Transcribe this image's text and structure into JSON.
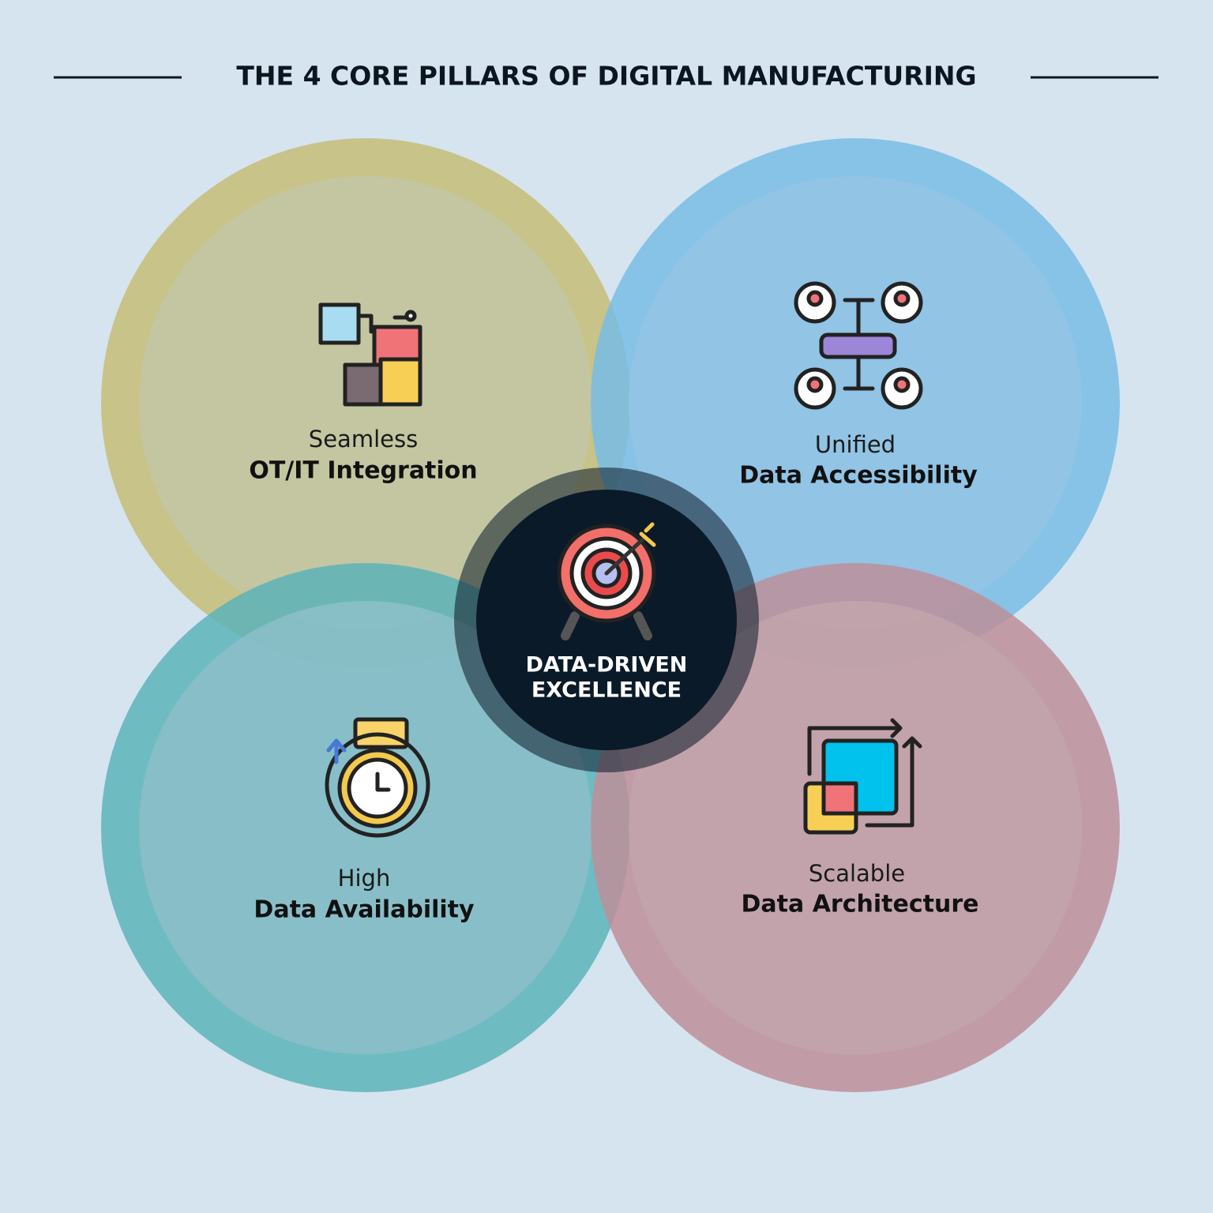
{
  "header": {
    "title": "THE 4 CORE PILLARS OF DIGITAL MANUFACTURING"
  },
  "pillars": [
    {
      "qualifier": "Seamless",
      "label": "OT/IT Integration"
    },
    {
      "qualifier": "Unified",
      "label": "Data Accessibility"
    },
    {
      "qualifier": "High",
      "label": "Data Availability"
    },
    {
      "qualifier": "Scalable",
      "label": "Data Architecture"
    }
  ],
  "center": {
    "lines": [
      "DATA-DRIVEN",
      "EXCELLENCE"
    ]
  }
}
